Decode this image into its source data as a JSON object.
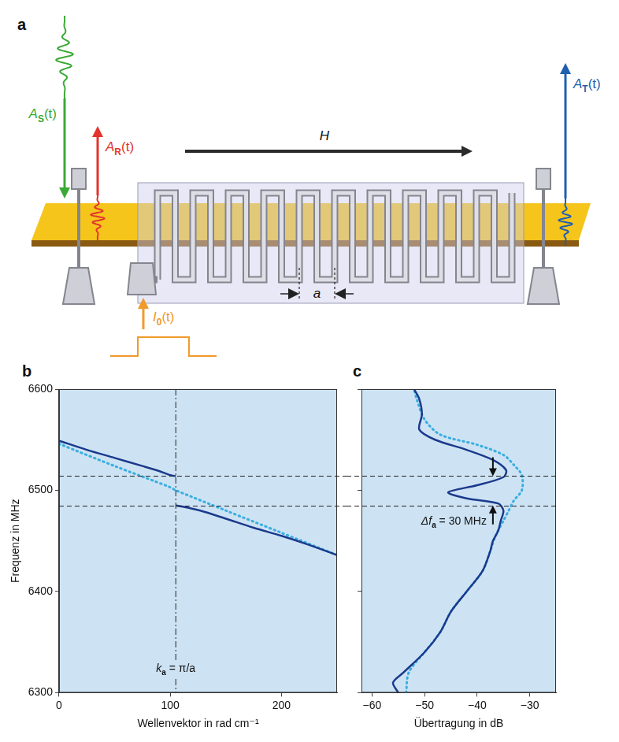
{
  "diagram": {
    "panel": "a",
    "labels": {
      "input_wave": {
        "main": "A",
        "sub": "S",
        "rest": "(t)"
      },
      "reflected_wave": {
        "main": "A",
        "sub": "R",
        "rest": "(t)"
      },
      "field": "H",
      "transmitted_wave": {
        "main": "A",
        "sub": "T",
        "rest": "(t)"
      },
      "current": {
        "main": "I",
        "sub": "0",
        "rest": "(t)"
      },
      "period": "a"
    }
  },
  "chart_data": [
    {
      "panel": "b",
      "type": "line",
      "x_label": "Wellenvektor in rad cm⁻¹",
      "y_label": "Frequenz in MHz",
      "xlim": [
        0,
        250
      ],
      "xticks": [
        0,
        100,
        200
      ],
      "ylim": [
        6300,
        6600
      ],
      "yticks": [
        6300,
        6400,
        6500,
        6600
      ],
      "grid": false,
      "hlines": [
        6514,
        6485
      ],
      "vline": {
        "x": 105,
        "label": {
          "main": "k",
          "sub": "a",
          "rest": " = π/a"
        }
      },
      "series": [
        {
          "color": "#1b3a8c",
          "line_style": "solid",
          "x": [
            0,
            25,
            50,
            75,
            90,
            100,
            105
          ],
          "values": [
            6549,
            6540,
            6532,
            6524,
            6519,
            6515,
            6514
          ]
        },
        {
          "color": "#1b3a8c",
          "line_style": "solid",
          "x": [
            105,
            115,
            130,
            150,
            175,
            200,
            225,
            250
          ],
          "values": [
            6485,
            6483,
            6479,
            6472,
            6463,
            6455,
            6446,
            6436
          ]
        },
        {
          "color": "#3aaee0",
          "line_style": "dotted",
          "x": [
            0,
            50,
            100,
            105,
            150,
            200,
            250
          ],
          "values": [
            6546,
            6524,
            6503,
            6500,
            6480,
            6458,
            6436
          ]
        }
      ]
    },
    {
      "panel": "c",
      "type": "line",
      "x_label": "Übertragung in dB",
      "xlim": [
        -62,
        -25
      ],
      "xticks": [
        {
          "value": -60,
          "label": "−60"
        },
        {
          "value": -50,
          "label": "−50"
        },
        {
          "value": -40,
          "label": "−40"
        },
        {
          "value": -30,
          "label": "−30"
        }
      ],
      "ylim": [
        6300,
        6600
      ],
      "yticks": [
        6300,
        6400,
        6500,
        6600
      ],
      "tick_labels": "x",
      "grid": false,
      "hlines": [
        6514,
        6485
      ],
      "arrows_x": -37,
      "annotation": {
        "main": "Δf",
        "sub": "a",
        "rest": " = 30 MHz"
      },
      "series": [
        {
          "color": "#1b3a8c",
          "line_style": "solid",
          "x": [
            -55,
            -56,
            -54,
            -50,
            -47,
            -45,
            -42,
            -39,
            -37.5,
            -37,
            -36,
            -35.5,
            -35,
            -36,
            -42,
            -45.5,
            -40,
            -35,
            -34.5,
            -37,
            -42,
            -48,
            -51,
            -50.5,
            -51,
            -52
          ],
          "values": [
            6300,
            6310,
            6320,
            6340,
            6360,
            6380,
            6400,
            6420,
            6440,
            6450,
            6460,
            6470,
            6480,
            6487,
            6492,
            6498,
            6505,
            6513,
            6520,
            6530,
            6540,
            6550,
            6560,
            6575,
            6590,
            6600
          ]
        },
        {
          "color": "#3aaee0",
          "line_style": "dotted",
          "x": [
            -53.5,
            -53,
            -50,
            -47,
            -45,
            -42,
            -39,
            -37.5,
            -36.5,
            -35,
            -34,
            -33,
            -31.5,
            -31.5,
            -33,
            -35,
            -40,
            -47,
            -50,
            -51.5,
            -52
          ],
          "values": [
            6300,
            6320,
            6340,
            6360,
            6380,
            6400,
            6420,
            6440,
            6455,
            6470,
            6480,
            6490,
            6500,
            6515,
            6525,
            6535,
            6545,
            6555,
            6570,
            6590,
            6600
          ]
        }
      ]
    }
  ]
}
